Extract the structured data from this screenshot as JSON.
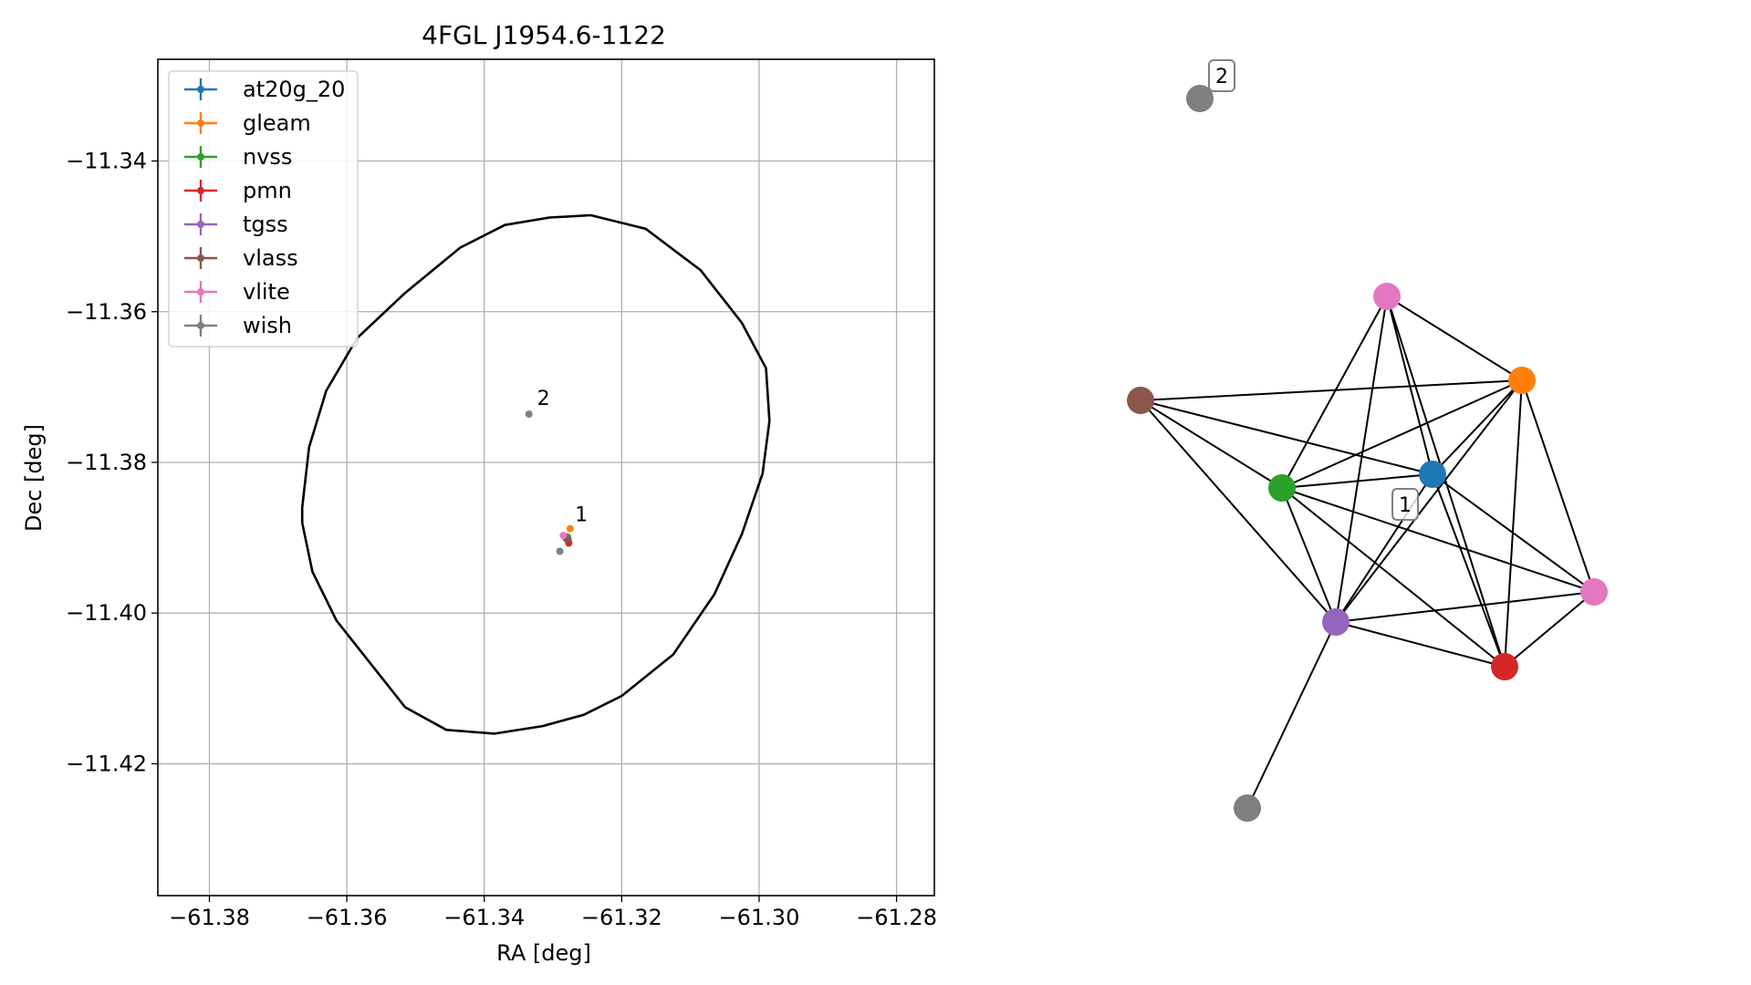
{
  "chart_data": [
    {
      "type": "scatter",
      "title": "4FGL J1954.6-1122",
      "xlabel": "RA [deg]",
      "ylabel": "Dec [deg]",
      "xlim": [
        -61.3875,
        -61.2745
      ],
      "ylim": [
        -11.4375,
        -11.3265
      ],
      "xticks": [
        -61.38,
        -61.36,
        -61.34,
        -61.32,
        -61.3,
        -61.28
      ],
      "xtick_labels": [
        "−61.38",
        "−61.36",
        "−61.34",
        "−61.32",
        "−61.30",
        "−61.28"
      ],
      "yticks": [
        -11.34,
        -11.36,
        -11.38,
        -11.4,
        -11.42
      ],
      "ytick_labels": [
        "−11.34",
        "−11.36",
        "−11.38",
        "−11.40",
        "−11.42"
      ],
      "grid": true,
      "legend_position": "top-left",
      "ellipse": {
        "ra": [
          -61.3245,
          -61.3165,
          -61.3085,
          -61.3025,
          -61.299,
          -61.2985,
          -61.2995,
          -61.3025,
          -61.3065,
          -61.3125,
          -61.32,
          -61.3255,
          -61.3315,
          -61.3385,
          -61.3455,
          -61.3515,
          -61.3615,
          -61.365,
          -61.3665,
          -61.3665,
          -61.3655,
          -61.363,
          -61.3585,
          -61.3515,
          -61.3435,
          -61.337,
          -61.3305
        ],
        "dec": [
          -11.3472,
          -11.349,
          -11.3545,
          -11.3615,
          -11.3675,
          -11.3745,
          -11.3815,
          -11.3895,
          -11.3975,
          -11.4055,
          -11.411,
          -11.4135,
          -11.415,
          -11.416,
          -11.4155,
          -11.4125,
          -11.401,
          -11.3945,
          -11.388,
          -11.386,
          -11.378,
          -11.3705,
          -11.3635,
          -11.3575,
          -11.3515,
          -11.3485,
          -11.3475
        ]
      },
      "series": [
        {
          "name": "at20g_20",
          "color": "#1f77b4",
          "points": [
            {
              "ra": -61.3278,
              "dec": -11.3902
            }
          ]
        },
        {
          "name": "gleam",
          "color": "#ff7f0e",
          "points": [
            {
              "ra": -61.3275,
              "dec": -11.3888
            }
          ]
        },
        {
          "name": "nvss",
          "color": "#2ca02c",
          "points": [
            {
              "ra": -61.3279,
              "dec": -11.3899
            }
          ]
        },
        {
          "name": "pmn",
          "color": "#d62728",
          "points": [
            {
              "ra": -61.3277,
              "dec": -11.3907
            }
          ]
        },
        {
          "name": "tgss",
          "color": "#9467bd",
          "points": [
            {
              "ra": -61.3281,
              "dec": -11.3901
            }
          ]
        },
        {
          "name": "vlass",
          "color": "#8c564b",
          "points": [
            {
              "ra": -61.3279,
              "dec": -11.3902
            }
          ]
        },
        {
          "name": "vlite",
          "color": "#e377c2",
          "points": [
            {
              "ra": -61.3285,
              "dec": -11.3897
            }
          ]
        },
        {
          "name": "wish",
          "color": "#7f7f7f",
          "points": [
            {
              "ra": -61.3335,
              "dec": -11.3736
            },
            {
              "ra": -61.329,
              "dec": -11.3918
            }
          ]
        }
      ],
      "annotations": [
        {
          "text": "2",
          "ra": -61.3335,
          "dec": -11.3736
        },
        {
          "text": "1",
          "ra": -61.328,
          "dec": -11.389
        }
      ]
    },
    {
      "type": "network",
      "clusters": [
        {
          "text": "1"
        },
        {
          "text": "2"
        }
      ],
      "nodes": [
        {
          "id": "pink_top",
          "series": "vlite",
          "color": "#e377c2"
        },
        {
          "id": "orange",
          "series": "gleam",
          "color": "#ff7f0e"
        },
        {
          "id": "brown",
          "series": "vlass",
          "color": "#8c564b"
        },
        {
          "id": "green",
          "series": "nvss",
          "color": "#2ca02c"
        },
        {
          "id": "blue",
          "series": "at20g_20",
          "color": "#1f77b4"
        },
        {
          "id": "pink_right",
          "series": "vlite",
          "color": "#e377c2"
        },
        {
          "id": "purple",
          "series": "tgss",
          "color": "#9467bd"
        },
        {
          "id": "red",
          "series": "pmn",
          "color": "#d62728"
        },
        {
          "id": "gray_bottom",
          "series": "wish",
          "color": "#7f7f7f"
        },
        {
          "id": "gray_top",
          "series": "wish",
          "color": "#7f7f7f"
        }
      ],
      "edges": [
        [
          "pink_top",
          "orange"
        ],
        [
          "pink_top",
          "green"
        ],
        [
          "pink_top",
          "blue"
        ],
        [
          "pink_top",
          "purple"
        ],
        [
          "pink_top",
          "red"
        ],
        [
          "brown",
          "orange"
        ],
        [
          "brown",
          "green"
        ],
        [
          "brown",
          "blue"
        ],
        [
          "brown",
          "purple"
        ],
        [
          "orange",
          "green"
        ],
        [
          "orange",
          "blue"
        ],
        [
          "orange",
          "purple"
        ],
        [
          "orange",
          "red"
        ],
        [
          "orange",
          "pink_right"
        ],
        [
          "green",
          "blue"
        ],
        [
          "green",
          "purple"
        ],
        [
          "green",
          "red"
        ],
        [
          "green",
          "pink_right"
        ],
        [
          "blue",
          "purple"
        ],
        [
          "blue",
          "red"
        ],
        [
          "blue",
          "pink_right"
        ],
        [
          "purple",
          "red"
        ],
        [
          "purple",
          "pink_right"
        ],
        [
          "purple",
          "gray_bottom"
        ],
        [
          "red",
          "pink_right"
        ]
      ]
    }
  ]
}
